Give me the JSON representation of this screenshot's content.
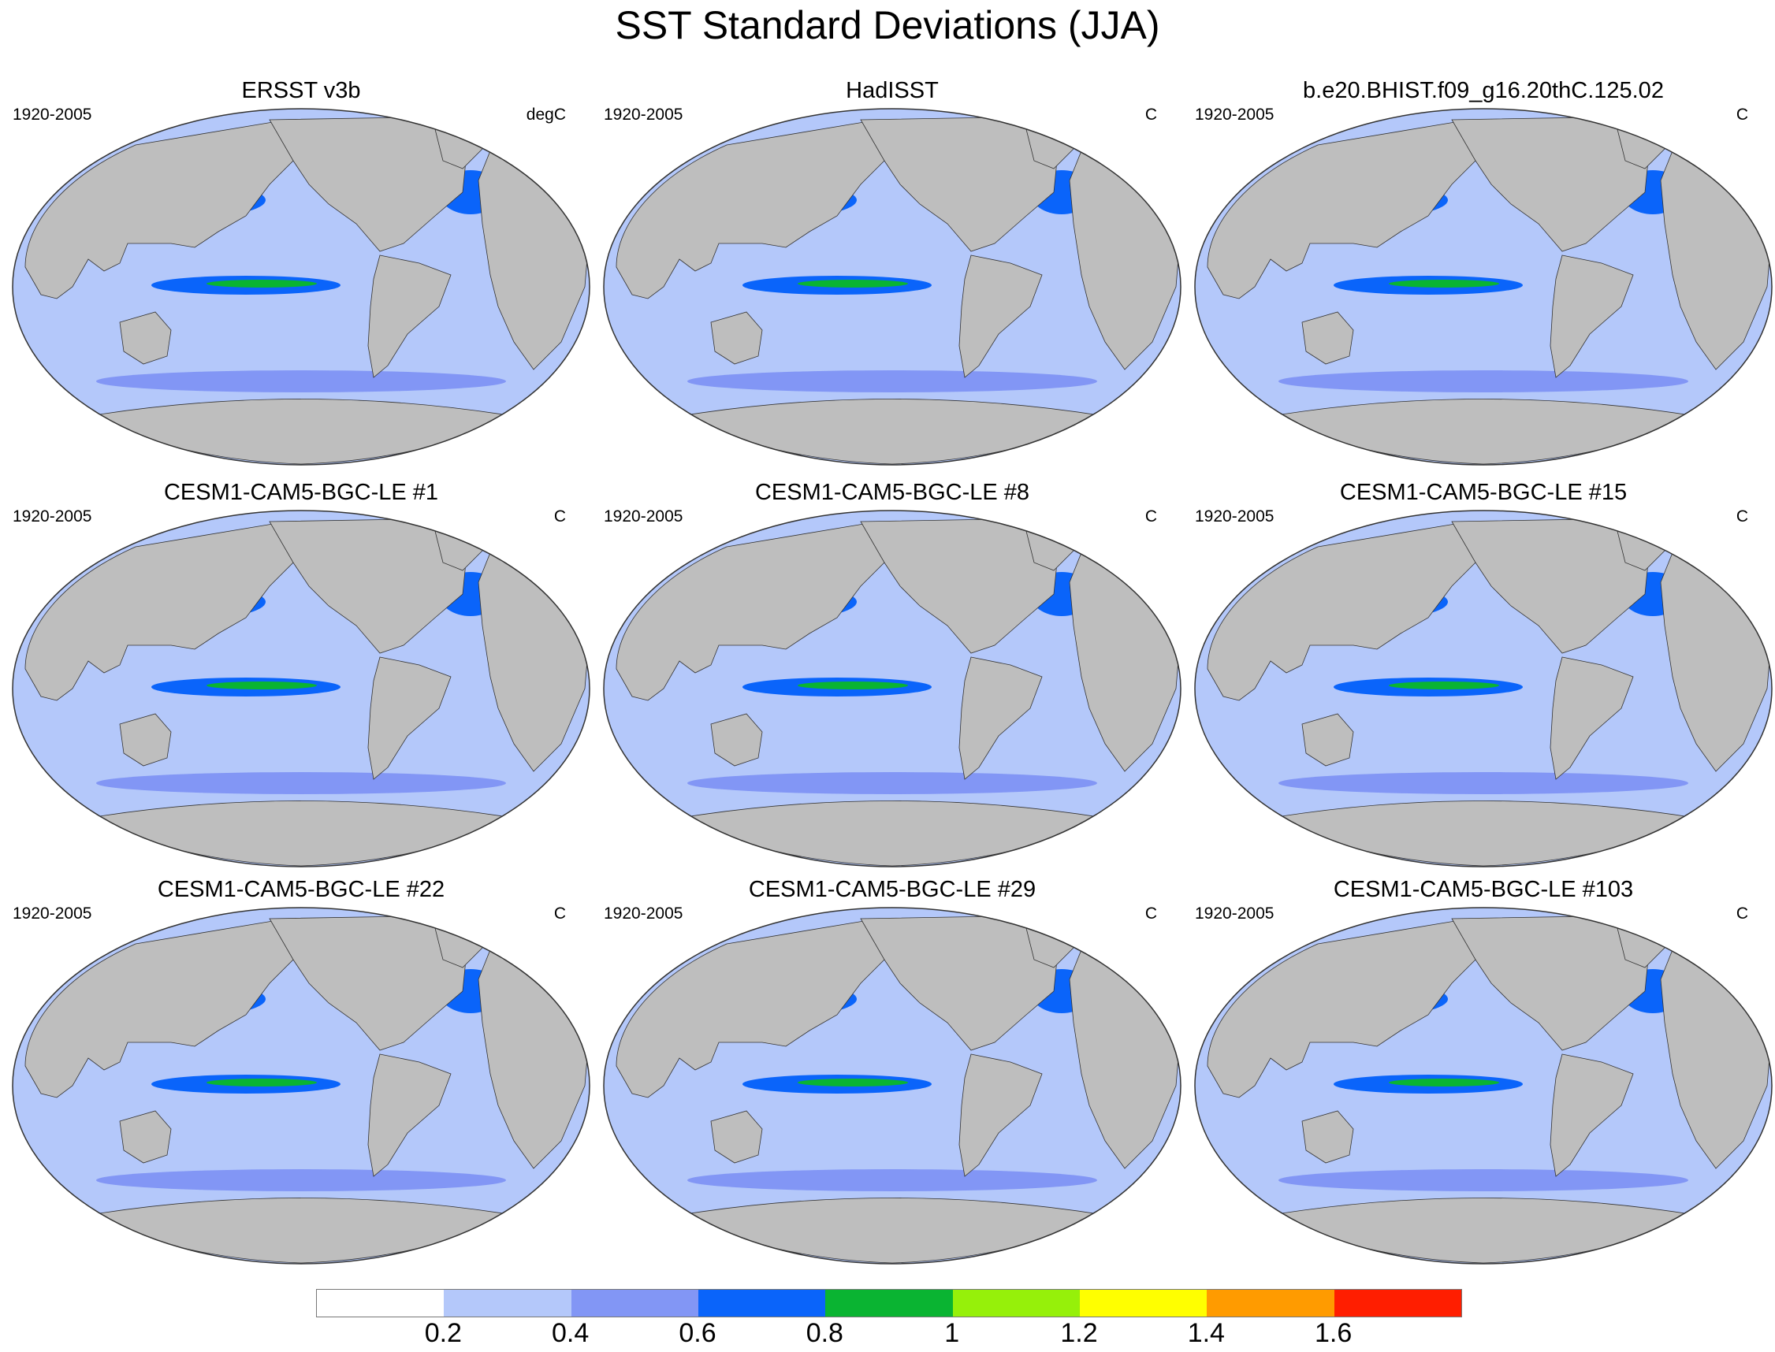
{
  "title": "SST Standard Deviations (JJA)",
  "panels": [
    {
      "title": "ERSST v3b",
      "period": "1920-2005",
      "units": "degC"
    },
    {
      "title": "HadISST",
      "period": "1920-2005",
      "units": "C"
    },
    {
      "title": "b.e20.BHIST.f09_g16.20thC.125.02",
      "period": "1920-2005",
      "units": "C"
    },
    {
      "title": "CESM1-CAM5-BGC-LE #1",
      "period": "1920-2005",
      "units": "C"
    },
    {
      "title": "CESM1-CAM5-BGC-LE #8",
      "period": "1920-2005",
      "units": "C"
    },
    {
      "title": "CESM1-CAM5-BGC-LE #15",
      "period": "1920-2005",
      "units": "C"
    },
    {
      "title": "CESM1-CAM5-BGC-LE #22",
      "period": "1920-2005",
      "units": "C"
    },
    {
      "title": "CESM1-CAM5-BGC-LE #29",
      "period": "1920-2005",
      "units": "C"
    },
    {
      "title": "CESM1-CAM5-BGC-LE #103",
      "period": "1920-2005",
      "units": "C"
    }
  ],
  "colorbar": {
    "labels": [
      "0.2",
      "0.4",
      "0.6",
      "0.8",
      "1",
      "1.2",
      "1.4",
      "1.6"
    ],
    "colors": [
      "#ffffff",
      "#b4c8fa",
      "#8296f5",
      "#0a64fa",
      "#0ab432",
      "#96f00a",
      "#ffff00",
      "#ff9b00",
      "#ff1e00"
    ]
  },
  "colors": {
    "land": "#bebebe",
    "ocean_low": "#b4c8fa",
    "ocean_mid": "#8296f5",
    "ocean_high": "#0a64fa"
  }
}
